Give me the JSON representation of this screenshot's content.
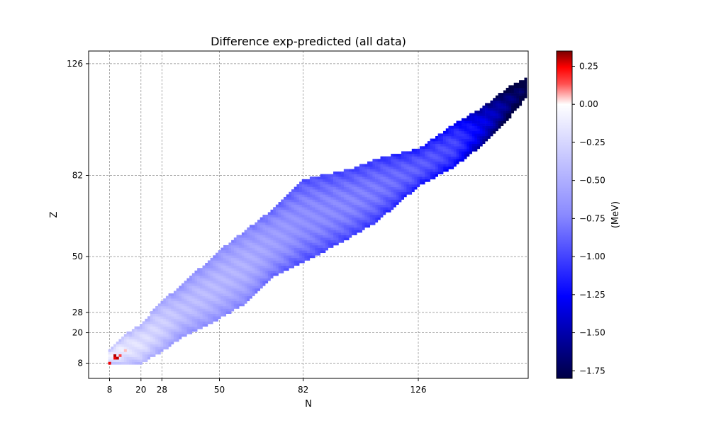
{
  "chart_data": {
    "type": "heatmap",
    "title": "Difference exp-predicted (all data)",
    "xlabel": "N",
    "ylabel": "Z",
    "x_ticks": [
      8,
      20,
      28,
      50,
      82,
      126
    ],
    "y_ticks": [
      8,
      20,
      28,
      50,
      82,
      126
    ],
    "xlim": [
      0,
      168
    ],
    "ylim": [
      2,
      131
    ],
    "grid": true,
    "colorbar": {
      "label": "(MeV)",
      "range": [
        -1.8,
        0.35
      ],
      "ticks": [
        0.25,
        0.0,
        -0.25,
        -0.5,
        -0.75,
        -1.0,
        -1.25,
        -1.5,
        -1.75
      ],
      "tick_labels": [
        "0.25",
        "0.00",
        "−0.25",
        "−0.50",
        "−0.75",
        "−1.00",
        "−1.25",
        "−1.50",
        "−1.75"
      ],
      "colormap": "seismic"
    },
    "band": {
      "description_points_N": [
        8,
        11,
        14,
        20,
        28,
        35,
        50,
        60,
        70,
        82,
        100,
        110,
        126,
        140,
        150,
        160,
        167
      ],
      "Z_lower": [
        8,
        8,
        8,
        8,
        13,
        18,
        26,
        32,
        42,
        48,
        58,
        64,
        78,
        86,
        94,
        104,
        113
      ],
      "Z_upper": [
        13,
        16,
        19,
        23,
        32,
        38,
        52,
        60,
        68,
        80,
        84,
        88,
        92,
        102,
        108,
        116,
        120
      ],
      "value_at_points": [
        -0.1,
        -0.1,
        -0.15,
        -0.2,
        -0.3,
        -0.4,
        -0.45,
        -0.5,
        -0.6,
        -0.7,
        -0.75,
        -0.8,
        -0.9,
        -1.0,
        -1.3,
        -1.6,
        -1.75
      ]
    },
    "highlights": [
      {
        "N": 10,
        "Z": 10,
        "value": 0.25
      },
      {
        "N": 10,
        "Z": 11,
        "value": 0.3
      },
      {
        "N": 11,
        "Z": 10,
        "value": 0.3
      },
      {
        "N": 8,
        "Z": 8,
        "value": 0.25
      },
      {
        "N": 12,
        "Z": 11,
        "value": 0.15
      },
      {
        "N": 14,
        "Z": 13,
        "value": 0.05
      }
    ]
  }
}
